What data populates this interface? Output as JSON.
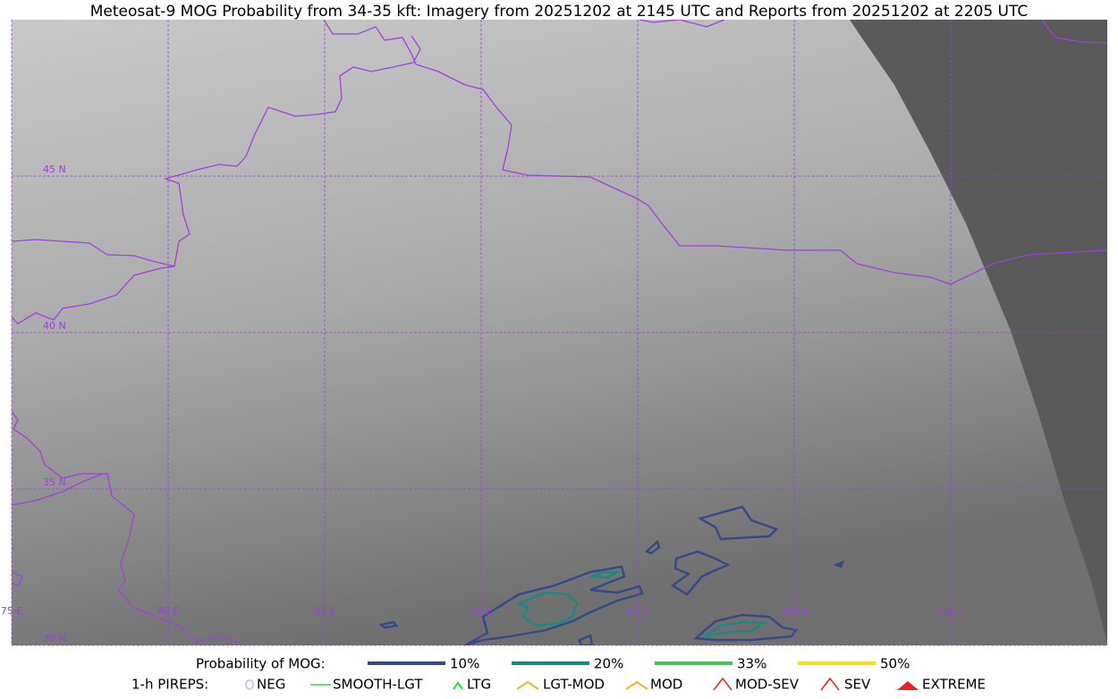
{
  "map": {
    "title": "Meteosat-9 MOG Probability from 34-35 kft: Imagery from 20251202 at 2145 UTC and Reports from 20251202 at 2205 UTC",
    "lat_labels": [
      {
        "value": 45,
        "label": "45 N"
      },
      {
        "value": 40,
        "label": "40 N"
      },
      {
        "value": 35,
        "label": "35 N"
      },
      {
        "value": 30,
        "label": "30 N"
      }
    ],
    "lon_labels": [
      {
        "value": 75,
        "label": "75 E"
      },
      {
        "value": 80,
        "label": "80 E"
      },
      {
        "value": 85,
        "label": "85 E"
      },
      {
        "value": 90,
        "label": "90 E"
      },
      {
        "value": 95,
        "label": "95 E"
      },
      {
        "value": 100,
        "label": "100 E"
      },
      {
        "value": 105,
        "label": "105 E"
      }
    ]
  },
  "legend": {
    "probability": {
      "title": "Probability of MOG:",
      "items": [
        {
          "label": "10%",
          "color": "#34498a"
        },
        {
          "label": "20%",
          "color": "#178a82"
        },
        {
          "label": "33%",
          "color": "#4cc35a"
        },
        {
          "label": "50%",
          "color": "#f3e21a"
        }
      ]
    },
    "pireps": {
      "title": "1-h PIREPS:",
      "items": [
        {
          "label": "NEG",
          "color": "#b9b9f5"
        },
        {
          "label": "SMOOTH-LGT",
          "color": "#33dd33"
        },
        {
          "label": "LTG",
          "color": "#22dd22"
        },
        {
          "label": "LGT-MOD",
          "color": "#f5b21a"
        },
        {
          "label": "MOD",
          "color": "#f5b21a"
        },
        {
          "label": "MOD-SEV",
          "color": "#e8231e"
        },
        {
          "label": "SEV",
          "color": "#e8231e"
        },
        {
          "label": "EXTREME",
          "color": "#e8231e"
        }
      ]
    }
  }
}
